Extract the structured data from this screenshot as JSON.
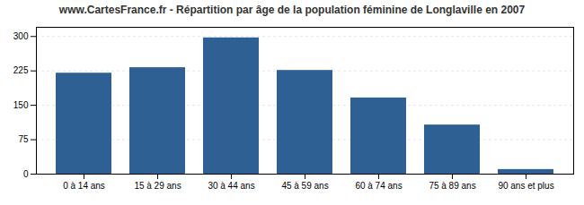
{
  "chart_data": {
    "type": "bar",
    "title": "www.CartesFrance.fr - Répartition par âge de la population féminine de Longlaville en 2007",
    "categories": [
      "0 à 14 ans",
      "15 à 29 ans",
      "30 à 44 ans",
      "45 à 59 ans",
      "60 à 74 ans",
      "75 à 89 ans",
      "90 ans et plus"
    ],
    "values": [
      220,
      232,
      297,
      226,
      166,
      107,
      10
    ],
    "color": "#2e6094",
    "ylim": [
      0,
      320
    ],
    "yticks": [
      0,
      75,
      150,
      225,
      300
    ],
    "grid": true
  }
}
